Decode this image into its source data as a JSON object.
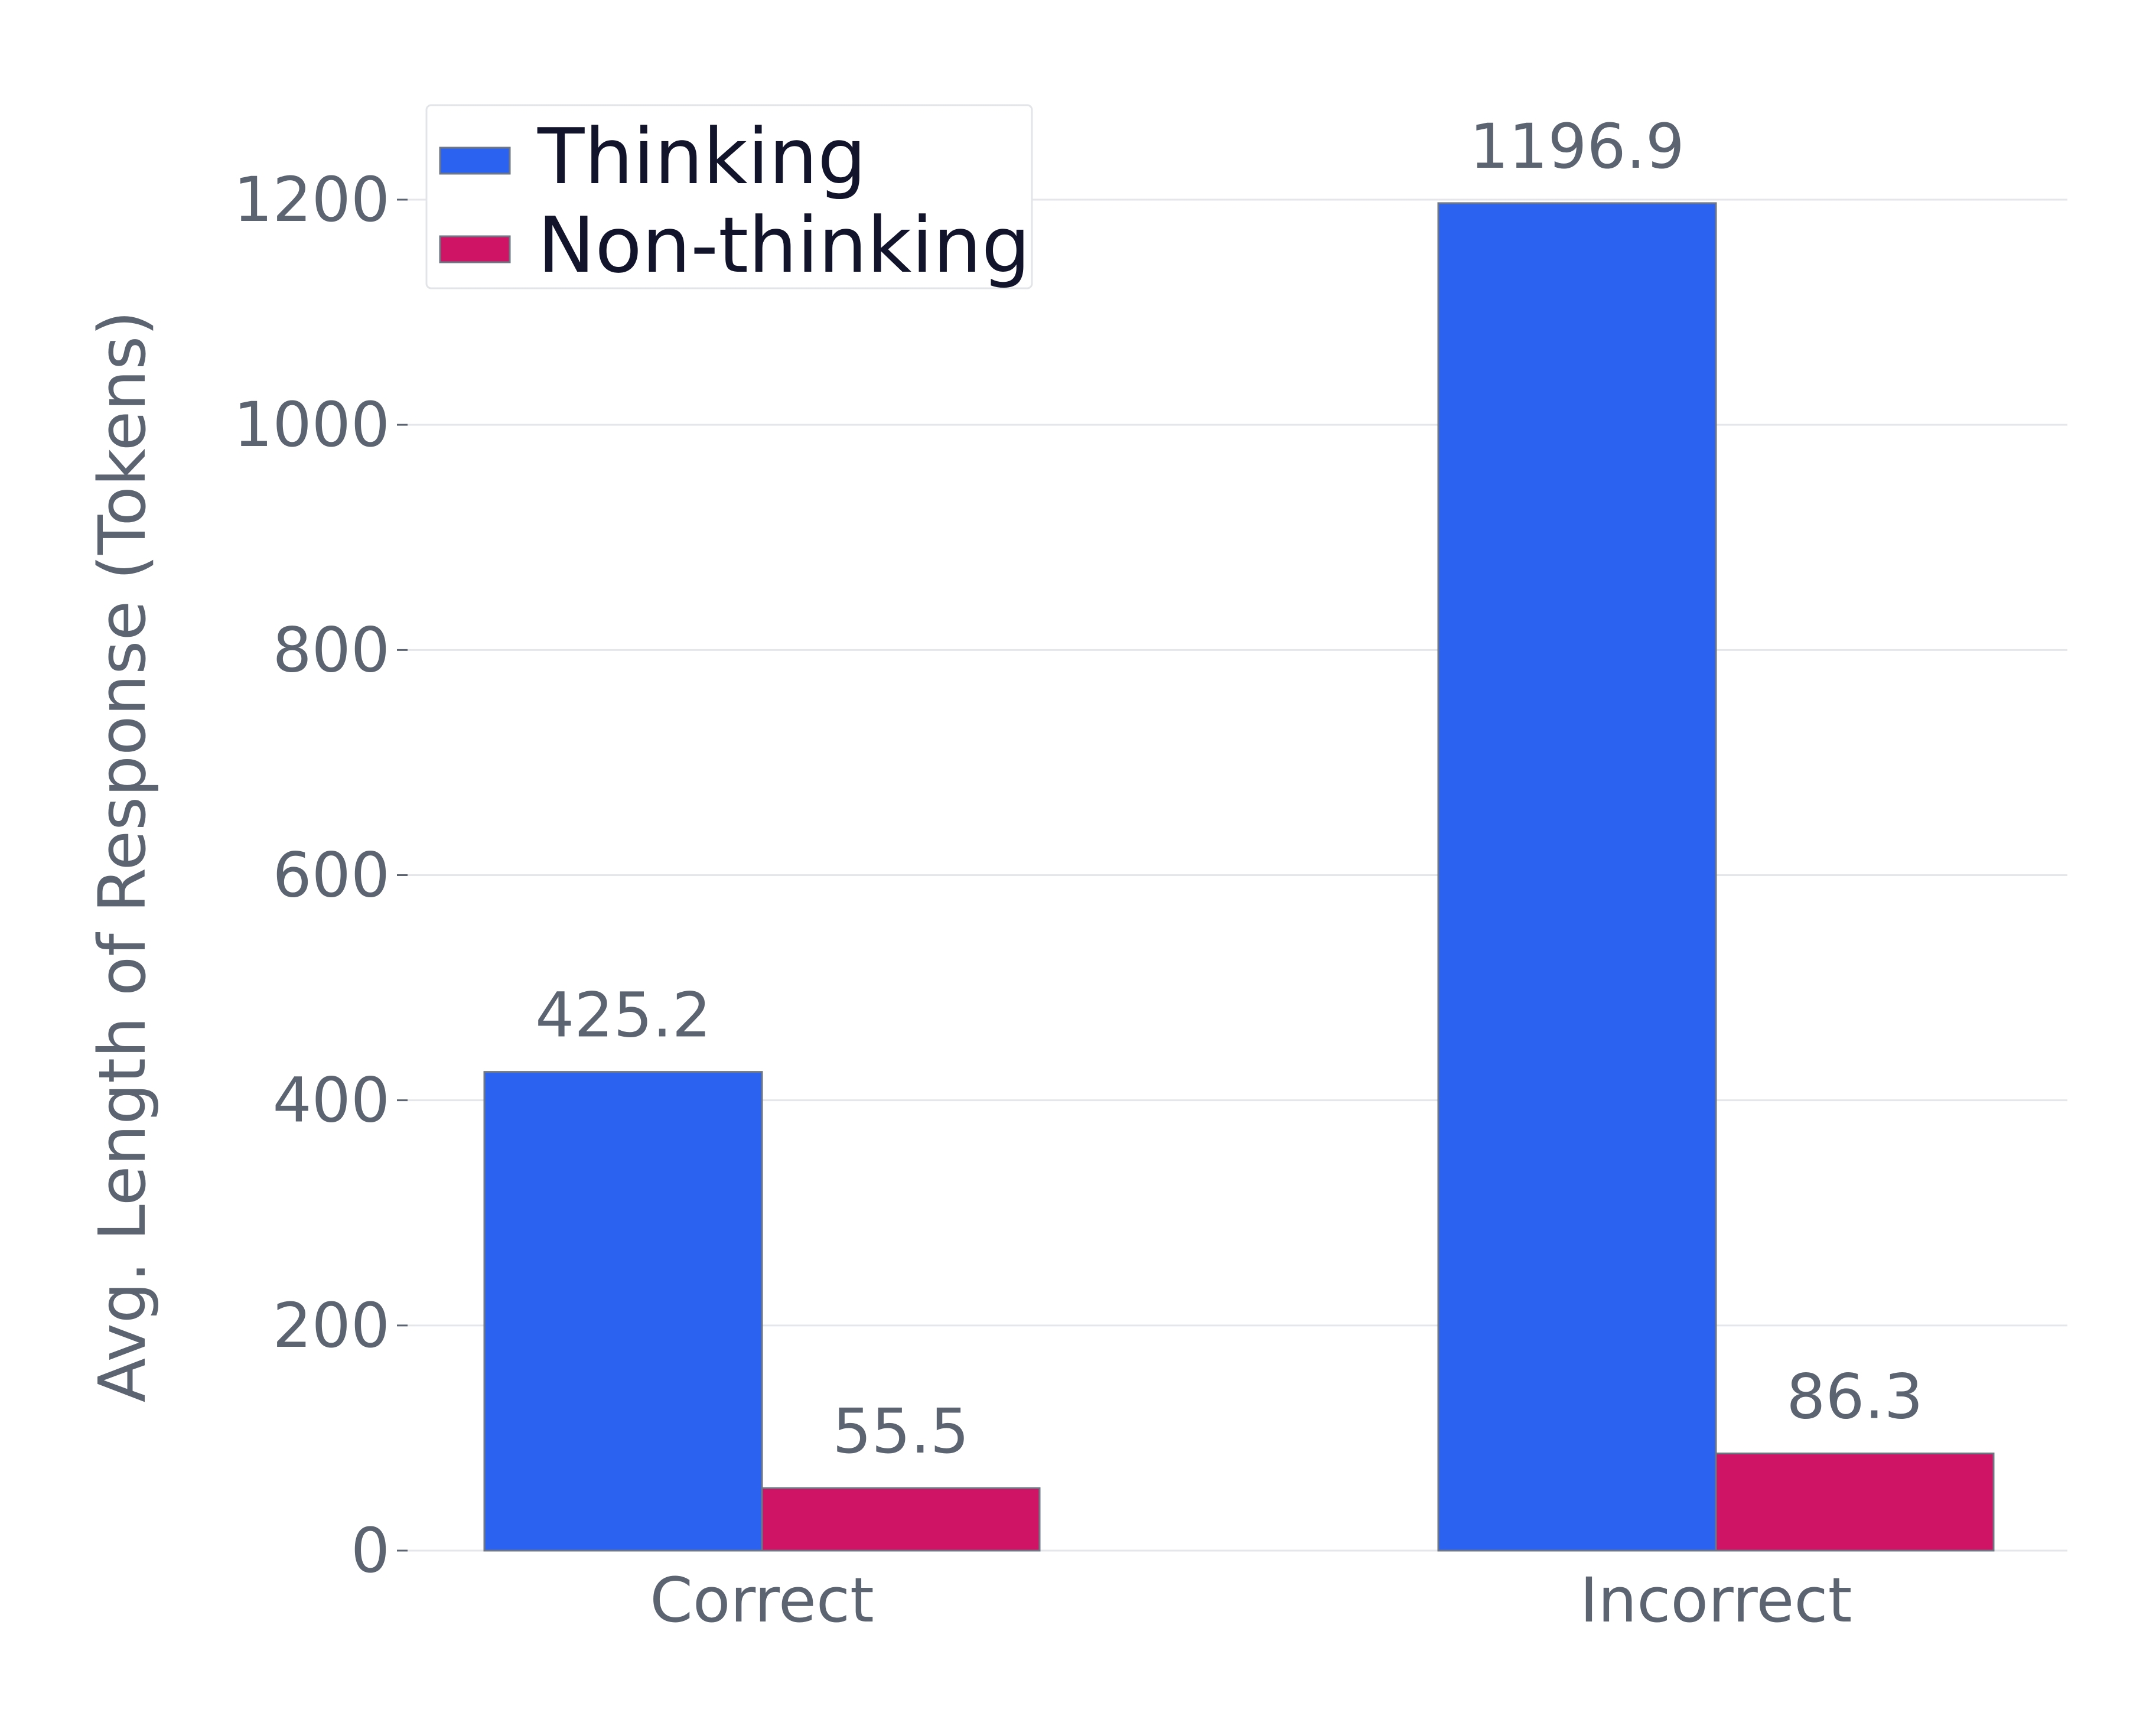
{
  "chart_data": {
    "type": "bar",
    "categories": [
      "Correct",
      "Incorrect"
    ],
    "series": [
      {
        "name": "Thinking",
        "values": [
          425.2,
          1196.9
        ],
        "labels": [
          "425.2",
          "1196.9"
        ],
        "color": "#2b63f0"
      },
      {
        "name": "Non-thinking",
        "values": [
          55.5,
          86.3
        ],
        "labels": [
          "55.5",
          "86.3"
        ],
        "color": "#cf1365"
      }
    ],
    "title": "",
    "xlabel": "",
    "ylabel": "Avg. Length of Response (Tokens)",
    "ylim": [
      0,
      1260
    ],
    "yticks": [
      0,
      200,
      400,
      600,
      800,
      1000,
      1200
    ],
    "grid": "horizontal",
    "legend_position": "top-left"
  }
}
